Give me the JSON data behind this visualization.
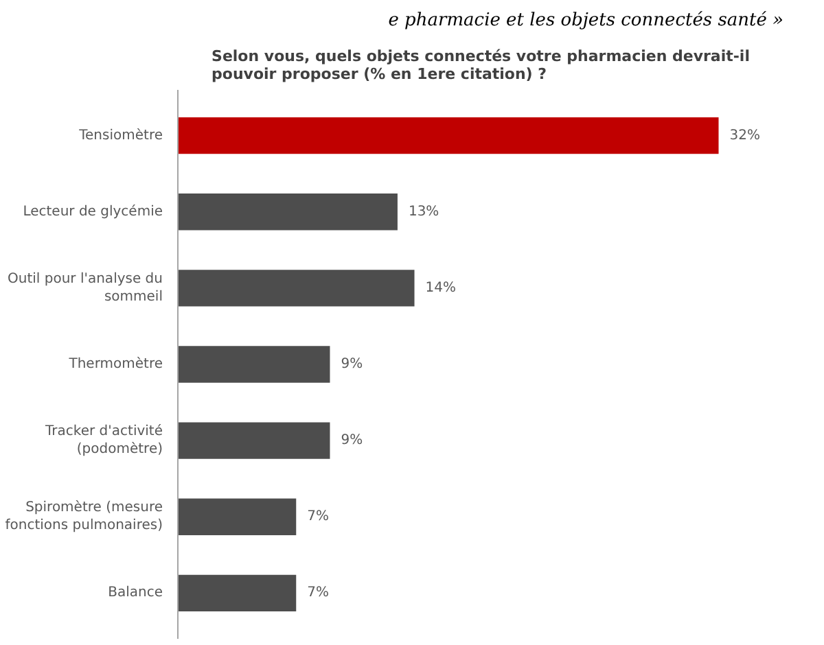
{
  "chart_data": {
    "type": "bar",
    "orientation": "horizontal",
    "title": "Selon vous, quels objets connectés votre pharmacien devrait-il pouvoir proposer (% en 1ere citation) ?",
    "annotations": [
      "e pharmacie et les objets connectés santé »"
    ],
    "categories": [
      "Tensiomètre",
      "Lecteur de glycémie",
      "Outil pour l'analyse du sommeil",
      "Thermomètre",
      "Tracker d'activité (podomètre)",
      "Spiromètre (mesure fonctions pulmonaires)",
      "Balance"
    ],
    "values": [
      32,
      13,
      14,
      9,
      9,
      7,
      7
    ],
    "colors": [
      "#c00000",
      "#4d4d4d",
      "#4d4d4d",
      "#4d4d4d",
      "#4d4d4d",
      "#4d4d4d",
      "#4d4d4d"
    ],
    "value_labels": [
      "32%",
      "13%",
      "14%",
      "9%",
      "9%",
      "7%",
      "7%"
    ],
    "grid": false
  }
}
